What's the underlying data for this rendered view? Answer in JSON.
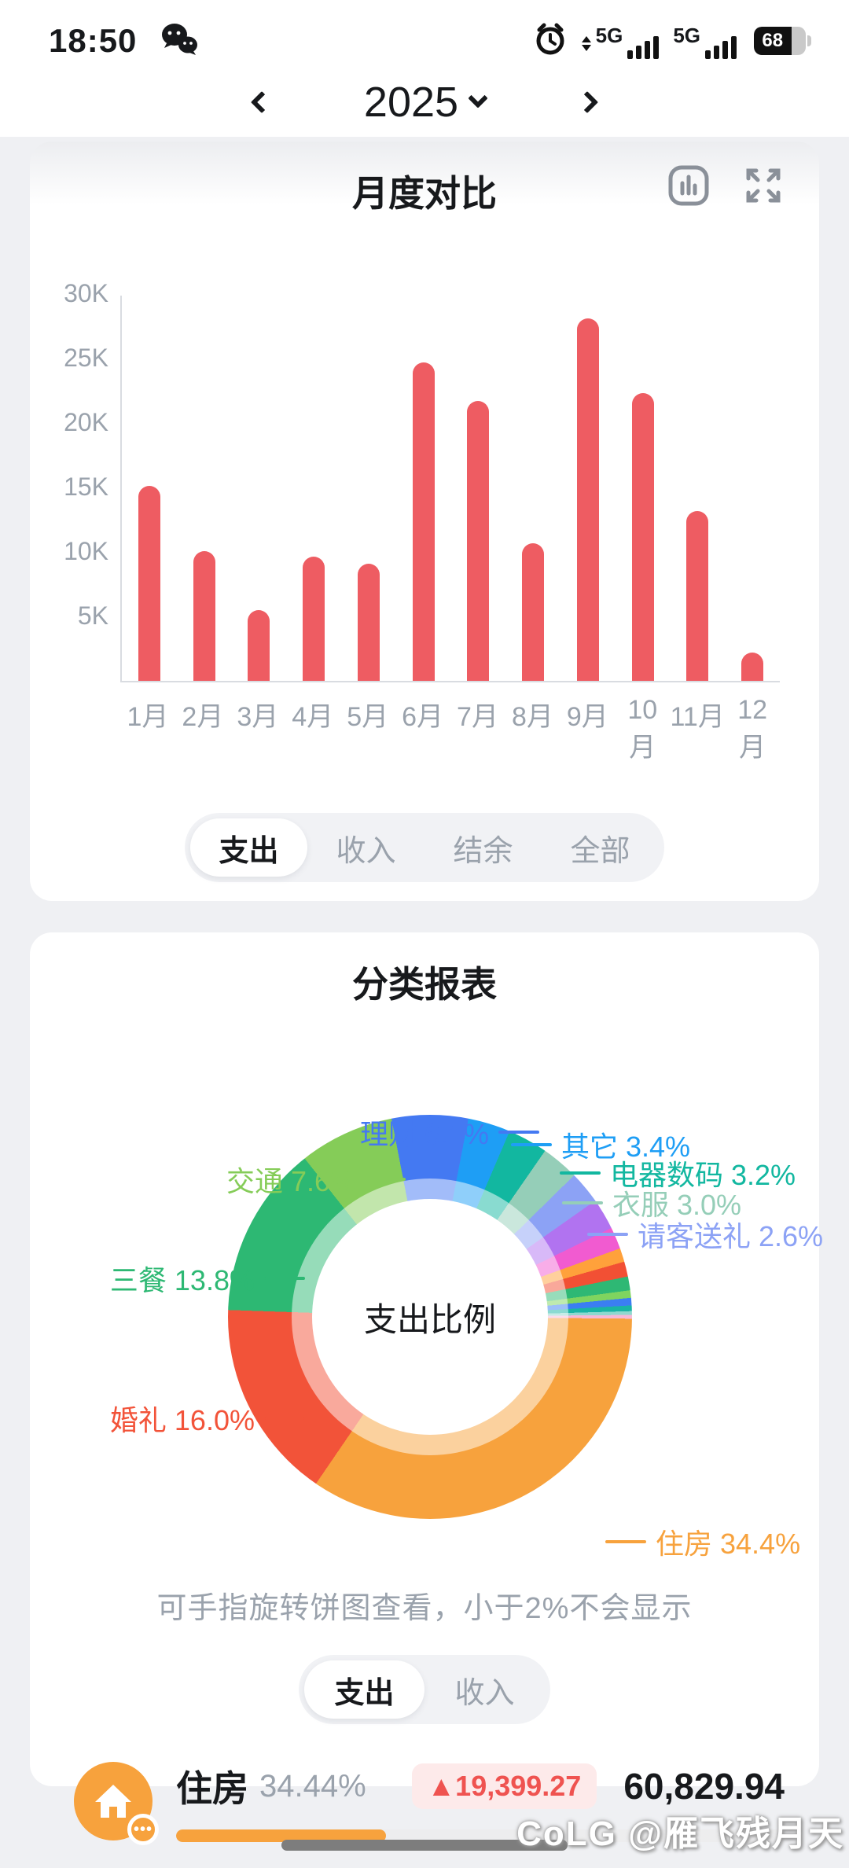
{
  "status_bar": {
    "time": "18:50",
    "battery": "68",
    "net_label_1": "5G",
    "net_label_2": "5G"
  },
  "year_nav": {
    "year": "2025"
  },
  "cards": [
    {
      "title": "月度对比",
      "tabs": [
        {
          "label": "支出",
          "active": true
        },
        {
          "label": "收入",
          "active": false
        },
        {
          "label": "结余",
          "active": false
        },
        {
          "label": "全部",
          "active": false
        }
      ]
    },
    {
      "title": "分类报表",
      "note": "可手指旋转饼图查看，小于2%不会显示",
      "tabs": [
        {
          "label": "支出",
          "active": true
        },
        {
          "label": "收入",
          "active": false
        }
      ],
      "item": {
        "name": "住房",
        "pct": "34.44%",
        "delta_display": "▲19,399.27",
        "amount": "60,829.94",
        "progress_pct": 34.44,
        "icon": "house-icon",
        "color": "#f7a23d"
      }
    }
  ],
  "chart_data": [
    {
      "type": "bar",
      "title": "月度对比",
      "categories": [
        "1月",
        "2月",
        "3月",
        "4月",
        "5月",
        "6月",
        "7月",
        "8月",
        "9月",
        "10月",
        "11月",
        "12月"
      ],
      "values": [
        15200,
        10100,
        5500,
        9700,
        9100,
        24800,
        21800,
        10700,
        28200,
        22400,
        13200,
        2200
      ],
      "xlabel": "",
      "ylabel": "",
      "ylim": [
        0,
        30000
      ],
      "yticks": [
        "5K",
        "10K",
        "15K",
        "20K",
        "25K",
        "30K"
      ],
      "bar_color": "#ee5c62",
      "grid": false,
      "legend": "none"
    },
    {
      "type": "pie",
      "title": "分类报表",
      "center_label": "支出比例",
      "start_angle": -11,
      "segments": [
        {
          "name": "理财",
          "pct": 6.1,
          "color": "#4479f2",
          "display": "理财 6.1%"
        },
        {
          "name": "其它",
          "pct": 3.4,
          "color": "#1e9ef5",
          "display": "其它 3.4%"
        },
        {
          "name": "电器数码",
          "pct": 3.2,
          "color": "#12b7a0",
          "display": "电器数码 3.2%"
        },
        {
          "name": "衣服",
          "pct": 3.0,
          "color": "#95ceb8",
          "display": "衣服 3.0%"
        },
        {
          "name": "请客送礼",
          "pct": 2.6,
          "color": "#8ca2f5",
          "display": "请客送礼 2.6%"
        },
        {
          "name": "unlabeled-violet",
          "pct": 2.5,
          "color": "#b173f0",
          "display": ""
        },
        {
          "name": "unlabeled-magenta",
          "pct": 1.75,
          "color": "#f15bd0",
          "display": ""
        },
        {
          "name": "unlabeled-orange",
          "pct": 1.1,
          "color": "#ffa13b",
          "display": ""
        },
        {
          "name": "unlabeled-red",
          "pct": 1.2,
          "color": "#f25034",
          "display": ""
        },
        {
          "name": "unlabeled-green",
          "pct": 1.1,
          "color": "#2eb874",
          "display": ""
        },
        {
          "name": "unlabeled-lightgreen",
          "pct": 0.6,
          "color": "#7fd45f",
          "display": ""
        },
        {
          "name": "unlabeled-blue",
          "pct": 0.6,
          "color": "#3b7ef2",
          "display": ""
        },
        {
          "name": "unlabeled-teal",
          "pct": 0.45,
          "color": "#19b4a4",
          "display": ""
        },
        {
          "name": "unlabeled-lightcyan",
          "pct": 0.3,
          "color": "#8fd8cf",
          "display": ""
        },
        {
          "name": "unlabeled-lightpink",
          "pct": 0.3,
          "color": "#f7b8d8",
          "display": ""
        },
        {
          "name": "住房",
          "pct": 34.4,
          "color": "#f7a23d",
          "display": "住房 34.4%"
        },
        {
          "name": "婚礼",
          "pct": 16.0,
          "color": "#f25339",
          "display": "婚礼 16.0%"
        },
        {
          "name": "三餐",
          "pct": 13.8,
          "color": "#2db873",
          "display": "三餐 13.8%"
        },
        {
          "name": "交通",
          "pct": 7.6,
          "color": "#85cc58",
          "display": "交通 7.6%"
        }
      ]
    }
  ],
  "watermark": {
    "text": "CoLG @雁飞残月天"
  }
}
